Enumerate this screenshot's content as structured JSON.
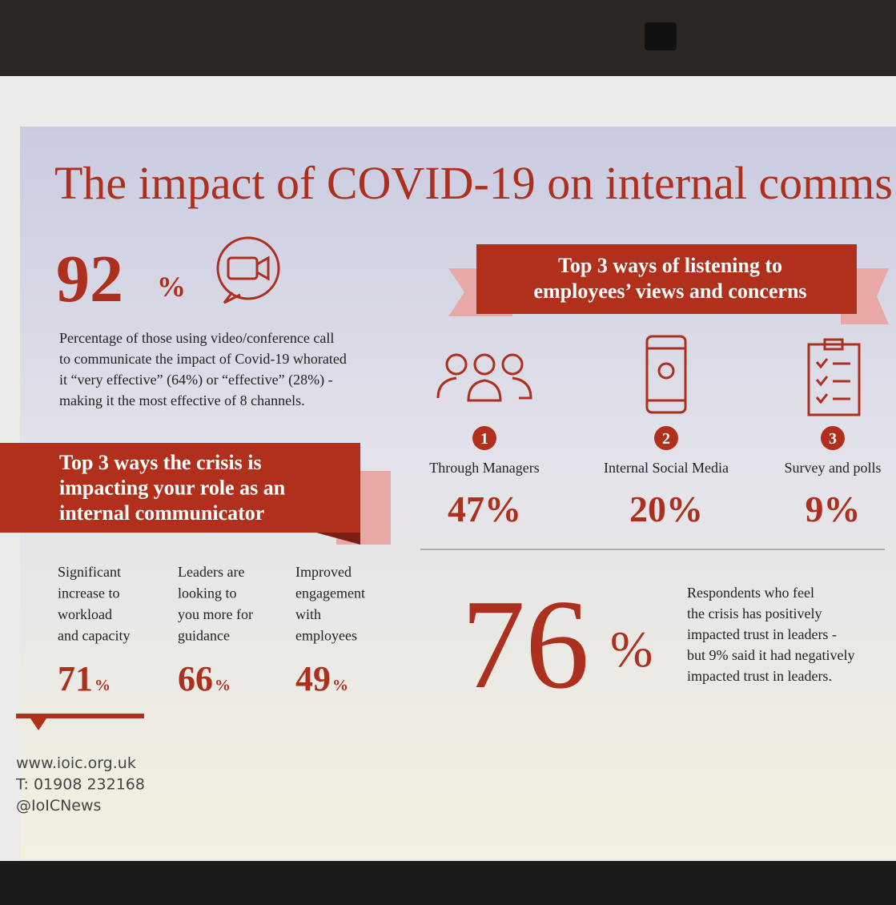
{
  "title": "The impact of COVID-19 on internal comms",
  "video_stat": {
    "value": "92",
    "unit": "%",
    "description": [
      "Percentage of those using video/conference call",
      "to communicate the impact of Covid-19 whorated",
      "it “very effective” (64%) or “effective” (28%) -",
      "making it the most effective of 8 channels."
    ]
  },
  "listening": {
    "heading": [
      "Top 3 ways of listening to",
      "employees’ views and concerns"
    ],
    "items": [
      {
        "rank": "1",
        "label": "Through Managers",
        "value": "47%"
      },
      {
        "rank": "2",
        "label": "Internal Social Media",
        "value": "20%"
      },
      {
        "rank": "3",
        "label": "Survey and polls",
        "value": "9%"
      }
    ]
  },
  "crisis": {
    "heading": [
      "Top 3 ways the crisis is",
      "impacting your role as an",
      "internal communicator"
    ],
    "items": [
      {
        "label": [
          "Significant",
          "increase to",
          "workload",
          "and capacity"
        ],
        "value": "71",
        "unit": "%"
      },
      {
        "label": [
          "Leaders are",
          "looking to",
          "you more for",
          "guidance"
        ],
        "value": "66",
        "unit": "%"
      },
      {
        "label": [
          "Improved",
          "engagement",
          "with",
          "employees"
        ],
        "value": "49",
        "unit": "%"
      }
    ]
  },
  "trust": {
    "value": "76",
    "unit": "%",
    "description": [
      "Respondents who feel",
      "the crisis has positively",
      "impacted trust in leaders -",
      "but 9% said it had negatively",
      "impacted trust in leaders."
    ]
  },
  "contact": [
    "www.ioic.org.uk",
    "T: 01908 232168",
    "@IoICNews"
  ]
}
